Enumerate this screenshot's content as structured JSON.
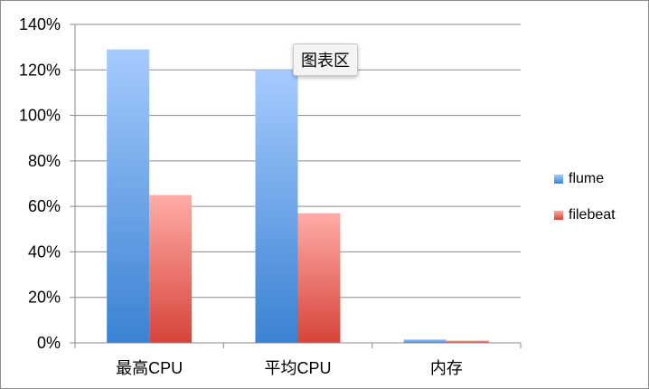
{
  "chart_data": {
    "type": "bar",
    "categories": [
      "最高CPU",
      "平均CPU",
      "内存"
    ],
    "series": [
      {
        "name": "flume",
        "values": [
          129,
          120,
          1.5
        ],
        "color": "#5b9bd5"
      },
      {
        "name": "filebeat",
        "values": [
          65,
          57,
          1
        ],
        "color": "#e0524b"
      }
    ],
    "y_ticks": [
      "0%",
      "20%",
      "40%",
      "60%",
      "80%",
      "100%",
      "120%",
      "140%"
    ],
    "ylim": [
      0,
      140
    ],
    "y_unit": "%",
    "grid": true,
    "legend_position": "right"
  },
  "tooltip": {
    "text": "图表区"
  }
}
